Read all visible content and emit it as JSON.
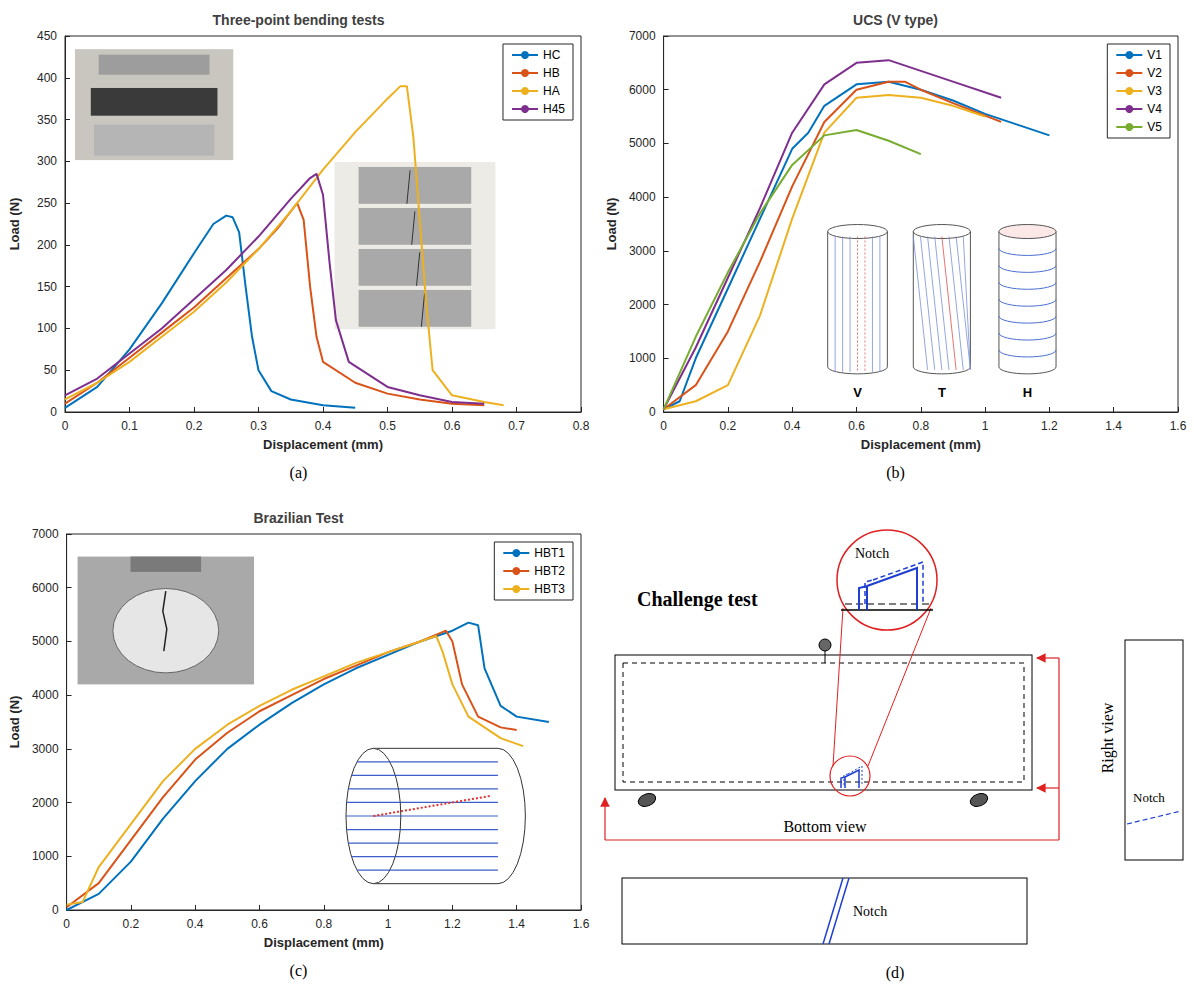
{
  "chart_data": [
    {
      "type": "line",
      "panel": "(a)",
      "title": "Three-point bending tests",
      "x_label": "Displacement (mm)",
      "y_label": "Load (N)",
      "xlim": [
        0,
        0.8
      ],
      "xticks": [
        0,
        0.1,
        0.2,
        0.3,
        0.4,
        0.5,
        0.6,
        0.7,
        0.8
      ],
      "ylim": [
        0,
        450
      ],
      "yticks": [
        0,
        50,
        100,
        150,
        200,
        250,
        300,
        350,
        400,
        450
      ],
      "grid": false,
      "legend": "upper right",
      "series": [
        {
          "name": "HC",
          "color": "#0072BD",
          "x": [
            0,
            0.05,
            0.1,
            0.15,
            0.2,
            0.23,
            0.25,
            0.26,
            0.27,
            0.28,
            0.29,
            0.3,
            0.32,
            0.35,
            0.4,
            0.45
          ],
          "values": [
            5,
            30,
            75,
            130,
            190,
            225,
            235,
            233,
            215,
            150,
            90,
            50,
            25,
            15,
            8,
            5
          ]
        },
        {
          "name": "HB",
          "color": "#D95319",
          "x": [
            0,
            0.05,
            0.1,
            0.15,
            0.2,
            0.25,
            0.3,
            0.33,
            0.35,
            0.36,
            0.37,
            0.38,
            0.39,
            0.4,
            0.45,
            0.5,
            0.55,
            0.6,
            0.65
          ],
          "values": [
            10,
            35,
            65,
            95,
            125,
            160,
            195,
            220,
            240,
            250,
            230,
            150,
            90,
            60,
            35,
            22,
            15,
            10,
            8
          ]
        },
        {
          "name": "HA",
          "color": "#EDB120",
          "x": [
            0,
            0.05,
            0.1,
            0.15,
            0.2,
            0.25,
            0.3,
            0.35,
            0.4,
            0.45,
            0.5,
            0.52,
            0.53,
            0.54,
            0.55,
            0.56,
            0.57,
            0.6,
            0.65,
            0.68
          ],
          "values": [
            15,
            35,
            60,
            90,
            120,
            155,
            195,
            240,
            290,
            335,
            375,
            390,
            390,
            330,
            230,
            130,
            50,
            20,
            12,
            8
          ]
        },
        {
          "name": "H45",
          "color": "#7E2F8E",
          "x": [
            0,
            0.05,
            0.1,
            0.15,
            0.2,
            0.25,
            0.3,
            0.35,
            0.38,
            0.39,
            0.4,
            0.41,
            0.42,
            0.44,
            0.5,
            0.55,
            0.6,
            0.65
          ],
          "values": [
            20,
            40,
            70,
            100,
            135,
            170,
            210,
            255,
            280,
            285,
            260,
            180,
            110,
            60,
            30,
            20,
            12,
            10
          ]
        }
      ]
    },
    {
      "type": "line",
      "panel": "(b)",
      "title": "UCS (V type)",
      "x_label": "Displacement (mm)",
      "y_label": "Load (N)",
      "xlim": [
        0,
        1.6
      ],
      "xticks": [
        0,
        0.2,
        0.4,
        0.6,
        0.8,
        1,
        1.2,
        1.4,
        1.6
      ],
      "ylim": [
        0,
        7000
      ],
      "yticks": [
        0,
        1000,
        2000,
        3000,
        4000,
        5000,
        6000,
        7000
      ],
      "grid": false,
      "legend": "upper right",
      "annotations": [
        "V",
        "T",
        "H"
      ],
      "series": [
        {
          "name": "V1",
          "color": "#0072BD",
          "x": [
            0,
            0.05,
            0.1,
            0.2,
            0.3,
            0.4,
            0.45,
            0.5,
            0.6,
            0.7,
            0.8,
            0.9,
            1.0,
            1.1,
            1.2
          ],
          "values": [
            50,
            200,
            1000,
            2300,
            3600,
            4900,
            5200,
            5700,
            6100,
            6150,
            6000,
            5800,
            5550,
            5350,
            5150
          ]
        },
        {
          "name": "V2",
          "color": "#D95319",
          "x": [
            0,
            0.1,
            0.2,
            0.3,
            0.4,
            0.5,
            0.6,
            0.7,
            0.75,
            0.8,
            0.9,
            1.05
          ],
          "values": [
            50,
            500,
            1500,
            2800,
            4200,
            5400,
            6000,
            6150,
            6150,
            6000,
            5750,
            5400
          ]
        },
        {
          "name": "V3",
          "color": "#EDB120",
          "x": [
            0,
            0.1,
            0.2,
            0.3,
            0.4,
            0.5,
            0.6,
            0.7,
            0.8,
            0.9,
            1.0
          ],
          "values": [
            50,
            200,
            500,
            1800,
            3600,
            5200,
            5850,
            5900,
            5850,
            5700,
            5500
          ]
        },
        {
          "name": "V4",
          "color": "#7E2F8E",
          "x": [
            0,
            0.1,
            0.2,
            0.3,
            0.4,
            0.5,
            0.6,
            0.7,
            0.8,
            0.9,
            1.05
          ],
          "values": [
            50,
            1200,
            2500,
            3800,
            5200,
            6100,
            6500,
            6550,
            6350,
            6150,
            5850
          ]
        },
        {
          "name": "V5",
          "color": "#77AC30",
          "x": [
            0,
            0.1,
            0.2,
            0.3,
            0.4,
            0.5,
            0.6,
            0.7,
            0.8
          ],
          "values": [
            50,
            1400,
            2600,
            3700,
            4600,
            5150,
            5250,
            5050,
            4800
          ]
        }
      ]
    },
    {
      "type": "line",
      "panel": "(c)",
      "title": "Brazilian Test",
      "x_label": "Displacement (mm)",
      "y_label": "Load (N)",
      "xlim": [
        0,
        1.6
      ],
      "xticks": [
        0,
        0.2,
        0.4,
        0.6,
        0.8,
        1,
        1.2,
        1.4,
        1.6
      ],
      "ylim": [
        0,
        7000
      ],
      "yticks": [
        0,
        1000,
        2000,
        3000,
        4000,
        5000,
        6000,
        7000
      ],
      "grid": false,
      "legend": "upper right",
      "series": [
        {
          "name": "HBT1",
          "color": "#0072BD",
          "x": [
            0,
            0.1,
            0.2,
            0.3,
            0.4,
            0.5,
            0.6,
            0.7,
            0.8,
            0.9,
            1.0,
            1.1,
            1.2,
            1.25,
            1.28,
            1.3,
            1.35,
            1.4,
            1.5
          ],
          "values": [
            0,
            300,
            900,
            1700,
            2400,
            3000,
            3450,
            3850,
            4200,
            4500,
            4750,
            5000,
            5200,
            5350,
            5300,
            4500,
            3800,
            3600,
            3500
          ]
        },
        {
          "name": "HBT2",
          "color": "#D95319",
          "x": [
            0,
            0.1,
            0.2,
            0.3,
            0.4,
            0.5,
            0.6,
            0.7,
            0.8,
            0.9,
            1.0,
            1.1,
            1.18,
            1.2,
            1.23,
            1.28,
            1.35,
            1.4
          ],
          "values": [
            50,
            500,
            1300,
            2100,
            2800,
            3300,
            3700,
            4000,
            4300,
            4550,
            4800,
            5000,
            5200,
            5000,
            4200,
            3600,
            3400,
            3350
          ]
        },
        {
          "name": "HBT3",
          "color": "#EDB120",
          "x": [
            0,
            0.05,
            0.1,
            0.2,
            0.3,
            0.4,
            0.5,
            0.6,
            0.7,
            0.8,
            0.9,
            1.0,
            1.1,
            1.15,
            1.17,
            1.2,
            1.25,
            1.35,
            1.42
          ],
          "values": [
            100,
            150,
            800,
            1600,
            2400,
            3000,
            3450,
            3800,
            4100,
            4350,
            4600,
            4800,
            5000,
            5100,
            4800,
            4200,
            3600,
            3200,
            3050
          ]
        }
      ]
    }
  ],
  "diagram": {
    "panel": "(d)",
    "title": "Challenge test",
    "zoom_label": "Notch",
    "right_view": {
      "title": "Right view",
      "label": "Notch"
    },
    "bottom_view": {
      "title": "Bottom view",
      "label": "Notch"
    }
  }
}
